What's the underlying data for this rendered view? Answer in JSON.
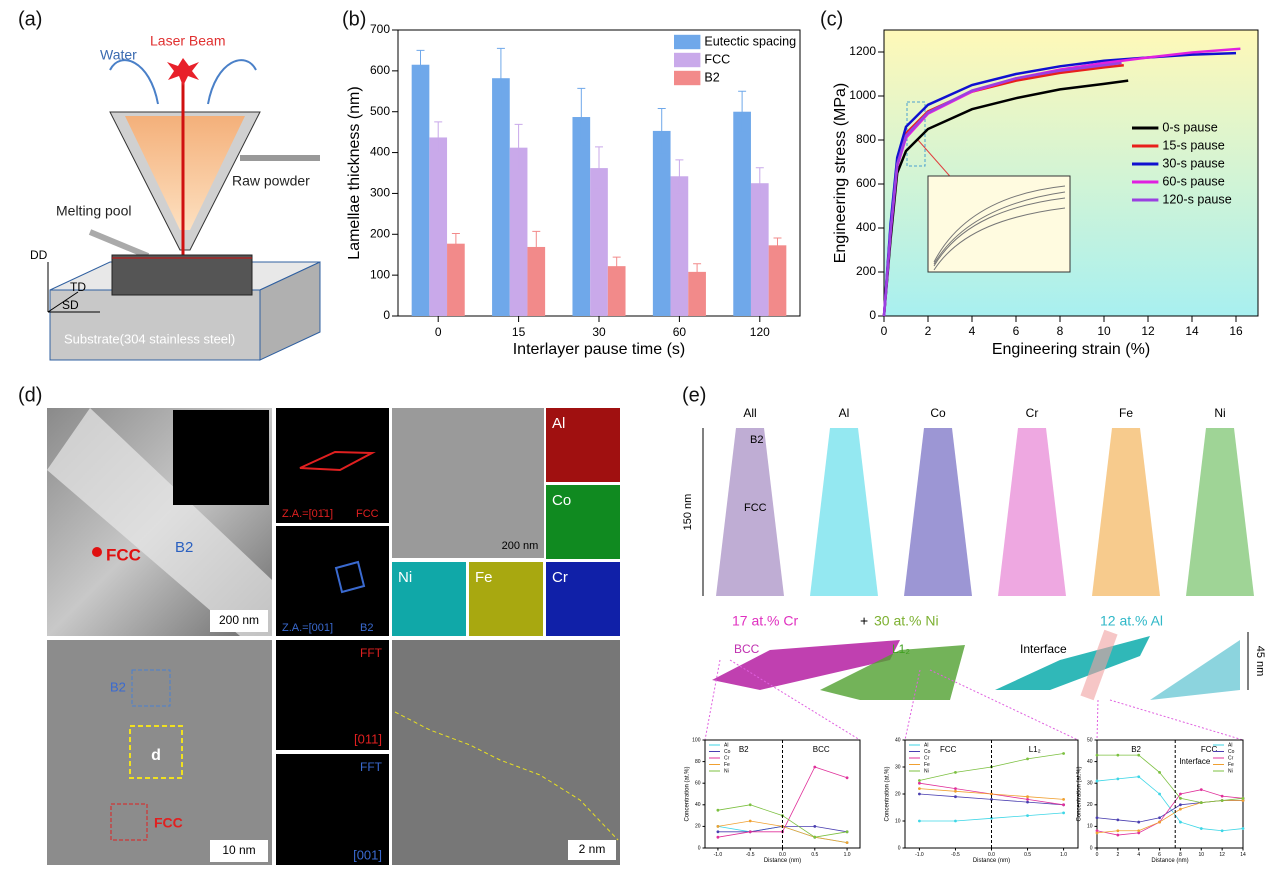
{
  "chart_data": [
    {
      "type": "bar",
      "xlabel": "Interlayer pause time (s)",
      "ylabel": "Lamellae thickness (nm)",
      "categories": [
        "0",
        "15",
        "30",
        "60",
        "120"
      ],
      "series": [
        {
          "name": "Eutectic spacing",
          "color": "#6fa8ea",
          "values": [
            615,
            582,
            487,
            453,
            500
          ],
          "errors": [
            35,
            73,
            70,
            55,
            50
          ]
        },
        {
          "name": "FCC",
          "color": "#c9a9ea",
          "values": [
            437,
            412,
            362,
            342,
            325
          ],
          "errors": [
            38,
            57,
            52,
            40,
            38
          ]
        },
        {
          "name": "B2",
          "color": "#f28a8a",
          "values": [
            177,
            169,
            122,
            108,
            173
          ],
          "errors": [
            25,
            38,
            22,
            20,
            18
          ]
        }
      ],
      "ylim": [
        0,
        700
      ],
      "yticks": [
        0,
        100,
        200,
        300,
        400,
        500,
        600,
        700
      ],
      "legend": "upper right",
      "grid": false
    },
    {
      "type": "line",
      "xlabel": "Engineering strain (%)",
      "ylabel": "Engineering stress (MPa)",
      "series": [
        {
          "name": "0-s pause",
          "color": "#000000",
          "x": [
            0,
            0.3,
            0.6,
            1,
            2,
            4,
            6,
            8,
            10,
            11.1
          ],
          "values": [
            0,
            350,
            650,
            750,
            850,
            940,
            990,
            1030,
            1055,
            1070
          ]
        },
        {
          "name": "15-s pause",
          "color": "#e8201c",
          "x": [
            0,
            0.3,
            0.6,
            1,
            2,
            4,
            6,
            8,
            10,
            10.9
          ],
          "values": [
            0,
            400,
            700,
            830,
            930,
            1020,
            1070,
            1105,
            1130,
            1140
          ]
        },
        {
          "name": "30-s pause",
          "color": "#1010d0",
          "x": [
            0,
            0.3,
            0.6,
            1,
            2,
            4,
            6,
            8,
            10,
            12,
            14,
            16
          ],
          "values": [
            0,
            420,
            720,
            860,
            960,
            1050,
            1100,
            1135,
            1160,
            1175,
            1188,
            1195
          ]
        },
        {
          "name": "60-s pause",
          "color": "#e020e0",
          "x": [
            0,
            0.3,
            0.6,
            1,
            2,
            4,
            6,
            8,
            10,
            12,
            14,
            16.2
          ],
          "values": [
            0,
            380,
            680,
            810,
            920,
            1020,
            1080,
            1120,
            1150,
            1175,
            1198,
            1215
          ]
        },
        {
          "name": "120-s pause",
          "color": "#9a40e0",
          "x": [
            0,
            0.3,
            0.6,
            1,
            2,
            4,
            6,
            8,
            10,
            10.8
          ],
          "values": [
            0,
            390,
            690,
            820,
            925,
            1025,
            1080,
            1115,
            1140,
            1150
          ]
        }
      ],
      "xlim": [
        0,
        17
      ],
      "xticks": [
        0,
        2,
        4,
        6,
        8,
        10,
        12,
        14,
        16
      ],
      "ylim": [
        0,
        1300
      ],
      "yticks": [
        0,
        200,
        400,
        600,
        800,
        1000,
        1200
      ],
      "legend": "center right",
      "grid": false
    },
    {
      "type": "line",
      "xlabel": "Distance (nm)",
      "ylabel": "Concentration (at.%)",
      "markers": true,
      "x": [
        -1,
        -0.5,
        0,
        0.5,
        1
      ],
      "series": [
        {
          "name": "Al",
          "color": "#3dd6e6",
          "values": [
            20,
            15,
            20,
            10,
            5
          ]
        },
        {
          "name": "Co",
          "color": "#4a3fb0",
          "values": [
            15,
            15,
            20,
            20,
            15
          ]
        },
        {
          "name": "Cr",
          "color": "#e0309a",
          "values": [
            10,
            15,
            15,
            75,
            65
          ]
        },
        {
          "name": "Fe",
          "color": "#f0a030",
          "values": [
            20,
            25,
            20,
            10,
            5
          ]
        },
        {
          "name": "Ni",
          "color": "#7cc040",
          "values": [
            35,
            40,
            30,
            10,
            15
          ]
        }
      ],
      "xlim": [
        -1.2,
        1.2
      ],
      "xticks": [
        {
          "value": -1,
          "label": "-1.0"
        },
        {
          "value": -0.5,
          "label": "-0.5"
        },
        {
          "value": 0,
          "label": "0.0"
        },
        {
          "value": 0.5,
          "label": "0.5"
        },
        {
          "value": 1,
          "label": "1.0"
        }
      ],
      "ylim": [
        0,
        100
      ],
      "yticks": [
        0,
        20,
        40,
        60,
        80,
        100
      ],
      "legend": "upper left",
      "vline": 0,
      "region_labels": [
        "B2",
        "BCC"
      ]
    },
    {
      "type": "line",
      "xlabel": "Distance (nm)",
      "ylabel": "Concentration (at.%)",
      "markers": true,
      "x": [
        -1,
        -0.5,
        0,
        0.5,
        1
      ],
      "series": [
        {
          "name": "Al",
          "color": "#3dd6e6",
          "values": [
            10,
            10,
            11,
            12,
            13
          ]
        },
        {
          "name": "Co",
          "color": "#4a3fb0",
          "values": [
            20,
            19,
            18,
            17,
            16
          ]
        },
        {
          "name": "Cr",
          "color": "#e0309a",
          "values": [
            24,
            22,
            20,
            18,
            16
          ]
        },
        {
          "name": "Fe",
          "color": "#f0a030",
          "values": [
            22,
            21,
            20,
            19,
            18
          ]
        },
        {
          "name": "Ni",
          "color": "#7cc040",
          "values": [
            25,
            28,
            30,
            33,
            35
          ]
        }
      ],
      "xlim": [
        -1.2,
        1.2
      ],
      "xticks": [
        {
          "value": -1,
          "label": "-1.0"
        },
        {
          "value": -0.5,
          "label": "-0.5"
        },
        {
          "value": 0,
          "label": "0.0"
        },
        {
          "value": 0.5,
          "label": "0.5"
        },
        {
          "value": 1,
          "label": "1.0"
        }
      ],
      "ylim": [
        0,
        40
      ],
      "yticks": [
        0,
        10,
        20,
        30,
        40
      ],
      "legend": "upper left",
      "vline": 0,
      "region_labels": [
        "FCC",
        "L1₂"
      ]
    },
    {
      "type": "line",
      "xlabel": "Distance (nm)",
      "ylabel": "Concentration (at.%)",
      "markers": true,
      "x": [
        0,
        2,
        4,
        6,
        8,
        10,
        12,
        14
      ],
      "series": [
        {
          "name": "Al",
          "color": "#3dd6e6",
          "values": [
            31,
            32,
            33,
            25,
            12,
            9,
            8,
            9
          ]
        },
        {
          "name": "Co",
          "color": "#4a3fb0",
          "values": [
            14,
            13,
            12,
            14,
            20,
            21,
            22,
            22
          ]
        },
        {
          "name": "Cr",
          "color": "#e0309a",
          "values": [
            8,
            6,
            7,
            12,
            25,
            27,
            24,
            23
          ]
        },
        {
          "name": "Fe",
          "color": "#f0a030",
          "values": [
            7,
            8,
            8,
            12,
            18,
            21,
            22,
            22
          ]
        },
        {
          "name": "Ni",
          "color": "#7cc040",
          "values": [
            43,
            43,
            43,
            35,
            23,
            21,
            22,
            23
          ]
        }
      ],
      "xlim": [
        0,
        14
      ],
      "xticks": [
        0,
        2,
        4,
        6,
        8,
        10,
        12,
        14
      ],
      "ylim": [
        0,
        50
      ],
      "yticks": [
        0,
        10,
        20,
        30,
        40,
        50
      ],
      "legend": "upper right",
      "vline": 7.5,
      "region_labels": [
        "B2",
        "FCC"
      ],
      "annotation": "Interface"
    }
  ],
  "figure": {
    "a": {
      "label": "(a)",
      "laser": "Laser Beam",
      "water": "Water",
      "powder": "Raw powder",
      "pool": "Melting pool",
      "dd": "DD",
      "td": "TD",
      "sd": "SD",
      "substrate": "Substrate(304 stainless steel)"
    },
    "b": {
      "label": "(b)"
    },
    "c": {
      "label": "(c)"
    },
    "d": {
      "label": "(d)",
      "fcc": "FCC",
      "b2": "B2",
      "scale1": "200 nm",
      "za1": "Z.A.=[01̄1]",
      "za1_phase": "FCC",
      "za2": "Z.A.=[001]",
      "za2_phase": "B2",
      "maps": [
        "Al",
        "Co",
        "Ni",
        "Fe",
        "Cr"
      ],
      "scale2": "200 nm",
      "b2_box": "B2",
      "d_box": "d",
      "fcc_box": "FCC",
      "scale3": "10 nm",
      "fft1": "FFT",
      "fft1_za": "[011]",
      "fft2": "FFT",
      "fft2_za": "[001]",
      "scale4": "2 nm"
    },
    "e": {
      "label": "(e)",
      "elements": [
        "All",
        "Al",
        "Co",
        "Cr",
        "Fe",
        "Ni"
      ],
      "length": "150 nm",
      "b2": "B2",
      "fcc": "FCC",
      "iso1_cr": "17 at.% Cr",
      "iso1_plus": "+",
      "iso1_ni": "30 at.% Ni",
      "iso2": "12 at.% Al",
      "bcc": "BCC",
      "l12": "L1₂",
      "interface": "Interface",
      "width": "45 nm"
    }
  }
}
